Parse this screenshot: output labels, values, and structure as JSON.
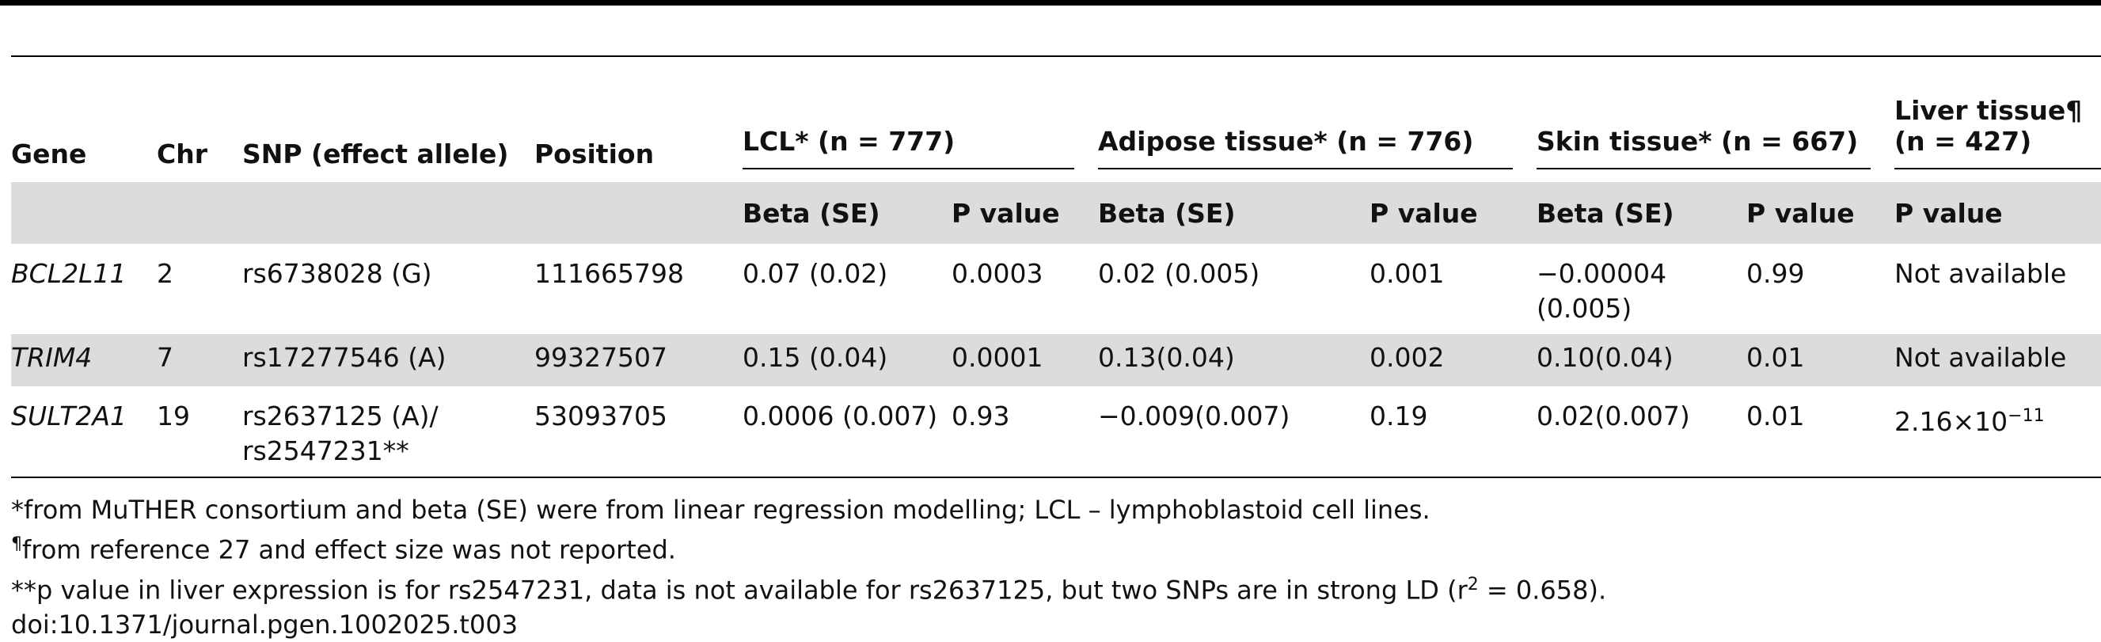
{
  "headers": {
    "gene": "Gene",
    "chr": "Chr",
    "snp": "SNP (effect allele)",
    "position": "Position",
    "lcl": "LCL* (n = 777)",
    "adipose": "Adipose tissue* (n = 776)",
    "skin": "Skin tissue* (n = 667)",
    "liver_line1": "Liver tissue¶",
    "liver_line2": "(n = 427)",
    "beta": "Beta (SE)",
    "pvalue": "P value"
  },
  "rows": [
    {
      "gene": "BCL2L11",
      "chr": "2",
      "snp": "rs6738028 (G)",
      "snp2": "",
      "position": "111665798",
      "lcl_beta": "0.07 (0.02)",
      "lcl_p": "0.0003",
      "adipose_beta": "0.02 (0.005)",
      "adipose_p": "0.001",
      "skin_beta": "−0.00004",
      "skin_beta2": "(0.005)",
      "skin_p": "0.99",
      "liver_p": "Not available",
      "liver_exp": ""
    },
    {
      "gene": "TRIM4",
      "chr": "7",
      "snp": "rs17277546 (A)",
      "snp2": "",
      "position": "99327507",
      "lcl_beta": "0.15 (0.04)",
      "lcl_p": "0.0001",
      "adipose_beta": "0.13(0.04)",
      "adipose_p": "0.002",
      "skin_beta": "0.10(0.04)",
      "skin_beta2": "",
      "skin_p": "0.01",
      "liver_p": "Not available",
      "liver_exp": ""
    },
    {
      "gene": "SULT2A1",
      "chr": "19",
      "snp": "rs2637125 (A)/",
      "snp2": "rs2547231**",
      "position": "53093705",
      "lcl_beta": "0.0006 (0.007)",
      "lcl_p": "0.93",
      "adipose_beta": "−0.009(0.007)",
      "adipose_p": "0.19",
      "skin_beta": "0.02(0.007)",
      "skin_beta2": "",
      "skin_p": "0.01",
      "liver_p": "2.16×10",
      "liver_exp": "−11"
    }
  ],
  "footnotes": {
    "f1": "*from MuTHER consortium and beta (SE) were from linear regression modelling; LCL – lymphoblastoid cell lines.",
    "f2_mark": "¶",
    "f2": "from reference 27 and effect size was not reported.",
    "f3_pre": "**p value in liver expression is for rs2547231, data is not available for rs2637125, but two SNPs are in strong LD (r",
    "f3_sup": "2",
    "f3_post": " = 0.658).",
    "doi": "doi:10.1371/journal.pgen.1002025.t003"
  }
}
